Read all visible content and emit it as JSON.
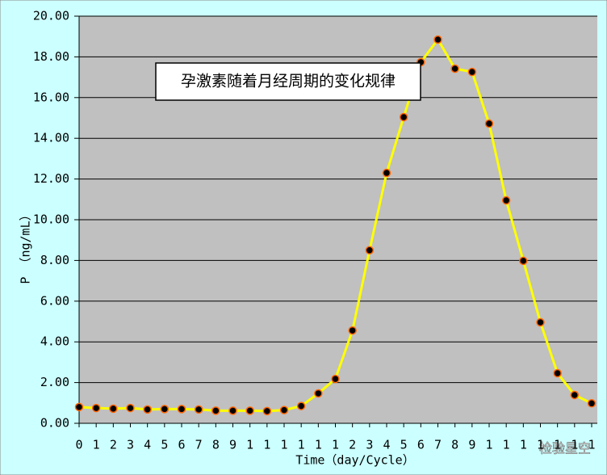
{
  "chart_data": {
    "type": "line",
    "title": "孕激素随着月经周期的变化规律",
    "x_label": "Time（day/Cycle）",
    "y_label": "P （ng/mL）",
    "watermark": "检验星空",
    "categories": [
      "0",
      "1",
      "2",
      "3",
      "4",
      "5",
      "6",
      "7",
      "8",
      "9",
      "1",
      "1",
      "1",
      "1",
      "1",
      "1",
      "2",
      "3",
      "4",
      "5",
      "6",
      "7",
      "8",
      "9",
      "1",
      "1",
      "1",
      "1",
      "1",
      "1",
      "1"
    ],
    "series": [
      {
        "name": "P",
        "color": "#ffff00",
        "values": [
          0.8,
          0.75,
          0.72,
          0.75,
          0.68,
          0.7,
          0.7,
          0.68,
          0.62,
          0.62,
          0.62,
          0.6,
          0.65,
          0.85,
          1.47,
          2.18,
          4.56,
          8.5,
          12.3,
          15.04,
          17.74,
          18.85,
          17.42,
          17.26,
          14.72,
          10.95,
          7.98,
          4.96,
          2.46,
          1.39,
          0.98
        ]
      }
    ],
    "ylim": [
      0,
      20
    ],
    "yticks": [
      {
        "value": 0,
        "label": "0.00"
      },
      {
        "value": 2,
        "label": "2.00"
      },
      {
        "value": 4,
        "label": "4.00"
      },
      {
        "value": 6,
        "label": "6.00"
      },
      {
        "value": 8,
        "label": "8.00"
      },
      {
        "value": 10,
        "label": "10.00"
      },
      {
        "value": 12,
        "label": "12.00"
      },
      {
        "value": 14,
        "label": "14.00"
      },
      {
        "value": 16,
        "label": "16.00"
      },
      {
        "value": 18,
        "label": "18.00"
      },
      {
        "value": 20,
        "label": "20.00"
      }
    ],
    "grid": true
  }
}
